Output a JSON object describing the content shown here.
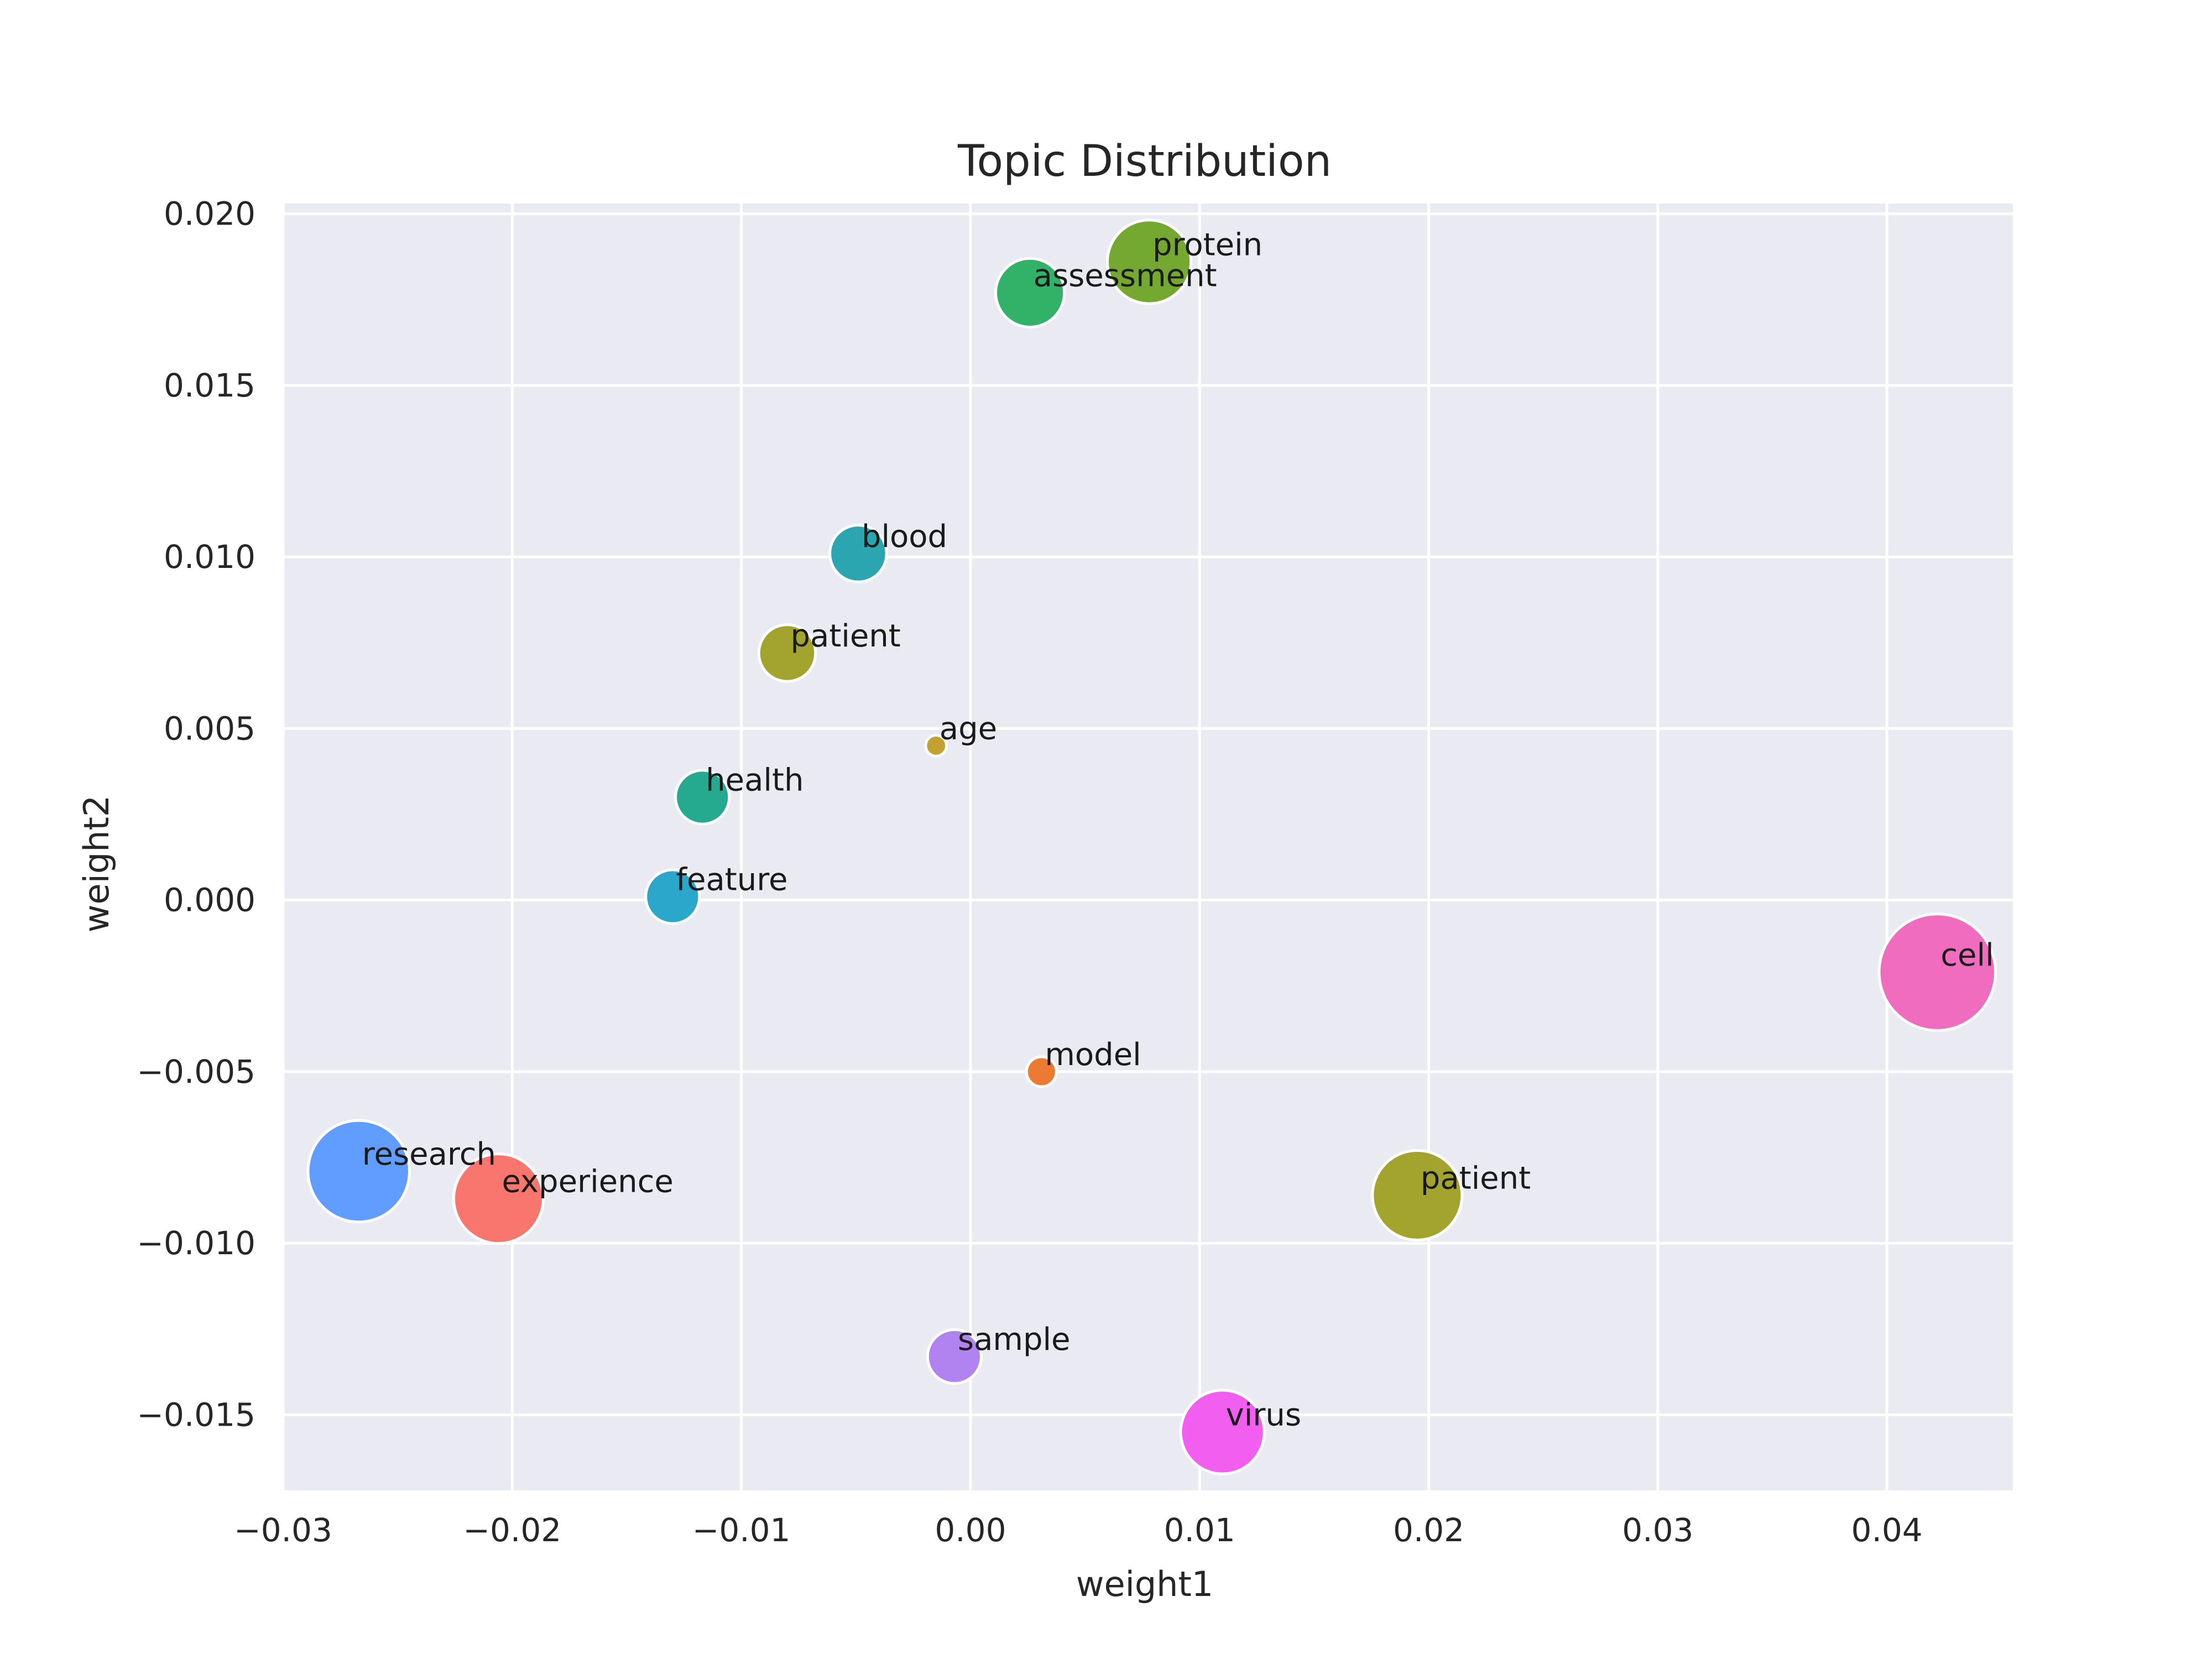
{
  "chart_data": {
    "type": "scatter",
    "title": "Topic Distribution",
    "xlabel": "weight1",
    "ylabel": "weight2",
    "xlim": [
      -0.03,
      0.0455
    ],
    "ylim": [
      -0.0172,
      0.0203
    ],
    "xticks": [
      -0.03,
      -0.02,
      -0.01,
      0.0,
      0.01,
      0.02,
      0.03,
      0.04
    ],
    "xtick_labels": [
      "−0.03",
      "−0.02",
      "−0.01",
      "0.00",
      "0.01",
      "0.02",
      "0.03",
      "0.04"
    ],
    "yticks": [
      -0.015,
      -0.01,
      -0.005,
      0.0,
      0.005,
      0.01,
      0.015,
      0.02
    ],
    "ytick_labels": [
      "−0.015",
      "−0.010",
      "−0.005",
      "0.000",
      "0.005",
      "0.010",
      "0.015",
      "0.020"
    ],
    "grid": true,
    "background": "#eaeaf2",
    "points": [
      {
        "label": "research",
        "x": -0.0267,
        "y": -0.0079,
        "size": 0.34,
        "color": "#619cff"
      },
      {
        "label": "experience",
        "x": -0.0206,
        "y": -0.0087,
        "size": 0.3,
        "color": "#f8766d"
      },
      {
        "label": "feature",
        "x": -0.013,
        "y": 0.0001,
        "size": 0.18,
        "color": "#2aa7cb"
      },
      {
        "label": "health",
        "x": -0.0117,
        "y": 0.003,
        "size": 0.18,
        "color": "#25a98f"
      },
      {
        "label": "patient",
        "x": -0.008,
        "y": 0.0072,
        "size": 0.19,
        "color": "#a3a42e"
      },
      {
        "label": "blood",
        "x": -0.0049,
        "y": 0.0101,
        "size": 0.19,
        "color": "#2ba6b1"
      },
      {
        "label": "age",
        "x": -0.0015,
        "y": 0.0045,
        "size": 0.07,
        "color": "#c3a131"
      },
      {
        "label": "sample",
        "x": -0.0007,
        "y": -0.0133,
        "size": 0.18,
        "color": "#b083f0"
      },
      {
        "label": "assessment",
        "x": 0.0026,
        "y": 0.0177,
        "size": 0.23,
        "color": "#32b268"
      },
      {
        "label": "model",
        "x": 0.0031,
        "y": -0.005,
        "size": 0.1,
        "color": "#ec7a32"
      },
      {
        "label": "protein",
        "x": 0.0078,
        "y": 0.0186,
        "size": 0.28,
        "color": "#74a830"
      },
      {
        "label": "virus",
        "x": 0.011,
        "y": -0.0155,
        "size": 0.28,
        "color": "#f15ef0"
      },
      {
        "label": "patient",
        "x": 0.0195,
        "y": -0.0086,
        "size": 0.3,
        "color": "#a3a42e"
      },
      {
        "label": "cell",
        "x": 0.0422,
        "y": -0.0021,
        "size": 0.39,
        "color": "#f06cbf"
      }
    ]
  }
}
